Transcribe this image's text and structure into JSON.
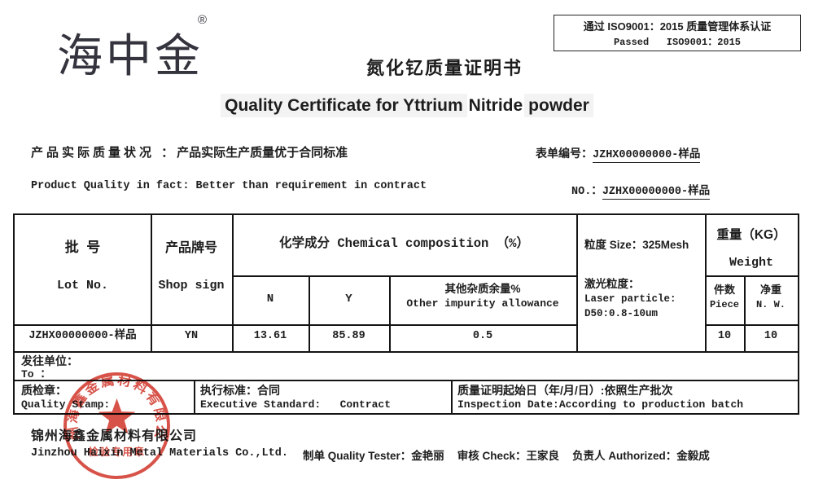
{
  "header": {
    "logo_text": "海中金",
    "registered_mark": "®",
    "iso_box": {
      "line1": "通过 ISO9001：2015 质量管理体系认证",
      "line2": "Passed   ISO9001：2015"
    },
    "title_zh": "氮化钇质量证明书",
    "title_en_part1": "Quality Certificate for Yttrium",
    "title_en_part2": "Nitride",
    "title_en_part3": "powder"
  },
  "meta": {
    "quality_label_zh": "产品实际质量状况 ：",
    "quality_value_zh": "产品实际生产质量优于合同标准",
    "quality_en": "Product Quality in fact: Better than requirement in contract",
    "form_no_label": "表单编号：",
    "form_no_value": "JZHX00000000-样品",
    "no_label": "NO.：",
    "no_value": "JZHX00000000-样品"
  },
  "table": {
    "lot_zh": "批  号",
    "lot_en": "Lot No.",
    "shop_zh": "产品牌号",
    "shop_en": "Shop sign",
    "chem_header": "化学成分 Chemical composition （%）",
    "col_n": "N",
    "col_y": "Y",
    "other_zh": "其他杂质余量%",
    "other_en": "Other impurity allowance",
    "size_line1": "粒度 Size：325Mesh",
    "size_line2": "激光粒度：",
    "size_line3": "Laser particle:",
    "size_line4": "D50:0.8-10um",
    "weight_zh": "重量（KG）",
    "weight_en": "Weight",
    "piece_zh": "件数",
    "piece_en": "Piece",
    "net_zh": "净重",
    "net_en": "N. W.",
    "row": {
      "lot": "JZHX00000000-样品",
      "shop": "YN",
      "n": "13.61",
      "y": "85.89",
      "other": "0.5",
      "size": "",
      "piece": "10",
      "net": "10"
    },
    "to_zh": "发往单位：",
    "to_en": "To ：",
    "stamp_zh": "质检章：",
    "stamp_en": "Quality Stamp:",
    "standard_zh": "执行标准：合同",
    "standard_en": "Executive Standard:   Contract",
    "inspection_zh": "质量证明起始日（年/月/日）:依照生产批次",
    "inspection_en": "Inspection Date:According to production batch"
  },
  "footer": {
    "company_zh": "锦州海鑫金属材料有限公司",
    "company_en": "Jinzhou Haixin Metal Materials Co.,Ltd.",
    "tester": "制单 Quality Tester：金艳丽",
    "check": "审核 Check：王家良",
    "authorized": "负责人 Authorized：金毅成"
  },
  "seal": {
    "ring_text": "锦州海鑫金属材料有限公司",
    "bottom_text": "检验专用章",
    "color": "#d23b2f"
  }
}
